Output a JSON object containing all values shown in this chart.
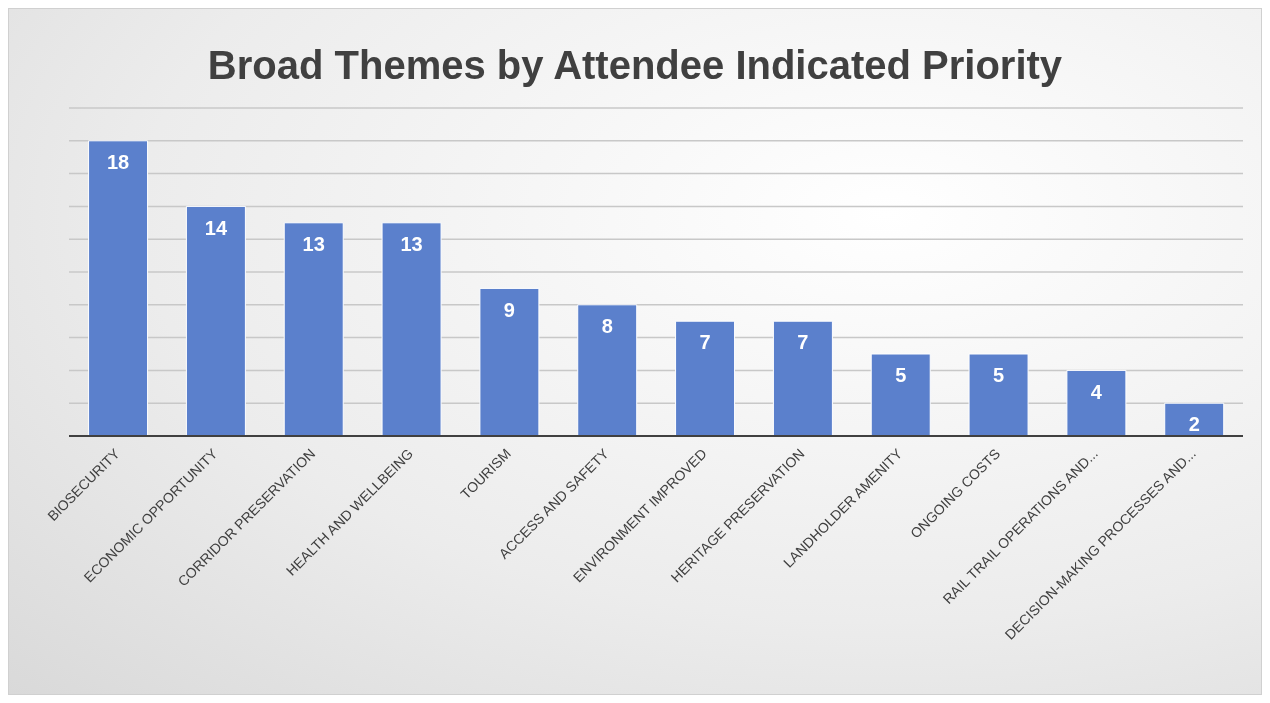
{
  "chart_data": {
    "type": "bar",
    "title": "Broad Themes by Attendee Indicated Priority",
    "categories": [
      "BIOSECURITY",
      "ECONOMIC OPPORTUNITY",
      "CORRIDOR PRESERVATION",
      "HEALTH AND WELLBEING",
      "TOURISM",
      "ACCESS AND SAFETY",
      "ENVIRONMENT IMPROVED",
      "HERITAGE PRESERVATION",
      "LANDHOLDER AMENITY",
      "ONGOING COSTS",
      "RAIL TRAIL OPERATIONS AND...",
      "DECISION-MAKING PROCESSES AND..."
    ],
    "values": [
      18,
      14,
      13,
      13,
      9,
      8,
      7,
      7,
      5,
      5,
      4,
      2
    ],
    "color": "#5b80cc",
    "ylim": [
      0,
      20
    ],
    "yticks": [
      {
        "value": 0,
        "label": null
      },
      {
        "value": 2,
        "label": null
      },
      {
        "value": 4,
        "label": null
      },
      {
        "value": 6,
        "label": null
      },
      {
        "value": 8,
        "label": null
      },
      {
        "value": 10,
        "label": null
      },
      {
        "value": 12,
        "label": null
      },
      {
        "value": 14,
        "label": null
      },
      {
        "value": 16,
        "label": null
      },
      {
        "value": 18,
        "label": null
      },
      {
        "value": 20,
        "label": null
      }
    ],
    "grid": "y",
    "tick_labels": "x",
    "data_labels": true,
    "legend": false
  }
}
